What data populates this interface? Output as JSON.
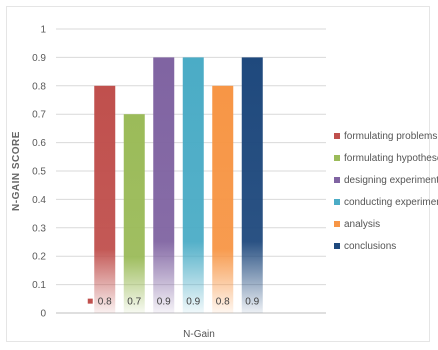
{
  "chart_data": {
    "type": "bar",
    "title": "",
    "xlabel": "N-Gain",
    "ylabel": "N-GAIN SCORE",
    "ylim": [
      0,
      1
    ],
    "yticks": [
      0,
      0.1,
      0.2,
      0.3,
      0.4,
      0.5,
      0.6,
      0.7,
      0.8,
      0.9,
      1
    ],
    "grid": true,
    "legend_position": "right",
    "series": [
      {
        "name": "formulating problems",
        "value": 0.8,
        "label": "0.8",
        "color": "#c0504d"
      },
      {
        "name": "formulating hypothese",
        "value": 0.7,
        "label": "0.7",
        "color": "#9bbb59"
      },
      {
        "name": "designing experiments",
        "value": 0.9,
        "label": "0.9",
        "color": "#8064a2"
      },
      {
        "name": "conducting experiment",
        "value": 0.9,
        "label": "0.9",
        "color": "#4bacc6"
      },
      {
        "name": "analysis",
        "value": 0.8,
        "label": "0.8",
        "color": "#f79646"
      },
      {
        "name": "conclusions",
        "value": 0.9,
        "label": "0.9",
        "color": "#1f497d"
      }
    ]
  }
}
